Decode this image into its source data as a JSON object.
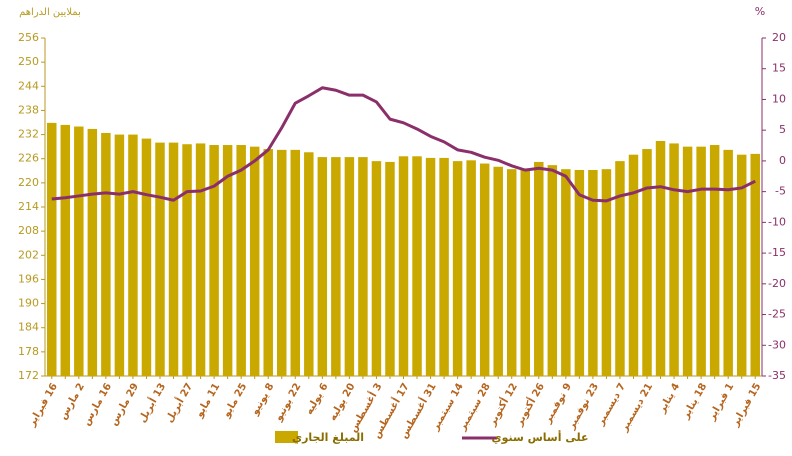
{
  "chart_data": {
    "type": "bar_line",
    "y_label": "بملايين الدراهم",
    "y2_label": "%",
    "categories": [
      "16 فبراير",
      null,
      "2 مارس",
      null,
      "16 مارس",
      null,
      "29 مارس",
      null,
      "13 أبريل",
      null,
      "27 أبريل",
      null,
      "11 مايو",
      null,
      "25 مايو",
      null,
      "8 يونيو",
      null,
      "22 يونيو",
      null,
      "6 يوليه",
      null,
      "20 يوليه",
      null,
      "3 أغسطس",
      null,
      "17 أغسطس",
      null,
      "31 أغسطس",
      null,
      "14 سبتمبر",
      null,
      "28 سبتمبر",
      null,
      "12 أكتوبر",
      null,
      "26 أكتوبر",
      null,
      "9 نوفمبر",
      null,
      "23 نوفمبر",
      null,
      "7 ديسمبر",
      null,
      "21 ديسمبر",
      null,
      "4 يناير",
      null,
      "18 يناير",
      null,
      "1 فبراير",
      null,
      "15 فبراير"
    ],
    "series": [
      {
        "name": "المبلغ الجاري",
        "color": "#c9a800",
        "kind": "bar",
        "axis": "y",
        "values": [
          234.9,
          234.4,
          234,
          233.4,
          232.4,
          232,
          232,
          231,
          230,
          230,
          229.6,
          229.8,
          229.4,
          229.4,
          229.4,
          229,
          228.4,
          228.2,
          228.2,
          227.6,
          226.4,
          226.4,
          226.4,
          226.4,
          225.4,
          225.2,
          226.6,
          226.6,
          226.2,
          226.2,
          225.4,
          225.6,
          224.8,
          224,
          223.4,
          223.6,
          225.2,
          224.4,
          223.4,
          223.2,
          223.2,
          223.4,
          225.4,
          227,
          228.4,
          230.4,
          229.8,
          229,
          229,
          229.4,
          228.2,
          227,
          227.2
        ]
      },
      {
        "name": "على أساس سنوي",
        "color": "#8b2f6b",
        "kind": "line",
        "axis": "y2",
        "values": [
          -6.2,
          -6,
          -5.7,
          -5.4,
          -5.2,
          -5.4,
          -5,
          -5.5,
          -5.9,
          -6.4,
          -5,
          -4.9,
          -4.1,
          -2.5,
          -1.5,
          0,
          1.8,
          5.4,
          9.4,
          10.6,
          11.9,
          11.5,
          10.7,
          10.7,
          9.6,
          6.8,
          6.2,
          5.2,
          4,
          3.1,
          1.8,
          1.4,
          0.6,
          0.1,
          -0.8,
          -1.5,
          -1.2,
          -1.5,
          -2.5,
          -5.5,
          -6.4,
          -6.5,
          -5.7,
          -5.2,
          -4.4,
          -4.2,
          -4.7,
          -5,
          -4.6,
          -4.6,
          -4.7,
          -4.4,
          -3.3
        ]
      }
    ],
    "ylim": [
      172,
      256
    ],
    "yticks": [
      172,
      178,
      184,
      190,
      196,
      202,
      208,
      214,
      220,
      226,
      232,
      238,
      244,
      250,
      256
    ],
    "y2lim": [
      -35,
      20
    ],
    "y2ticks": [
      -35,
      -30,
      -25,
      -20,
      -15,
      -10,
      -5,
      0,
      5,
      10,
      15,
      20
    ]
  }
}
